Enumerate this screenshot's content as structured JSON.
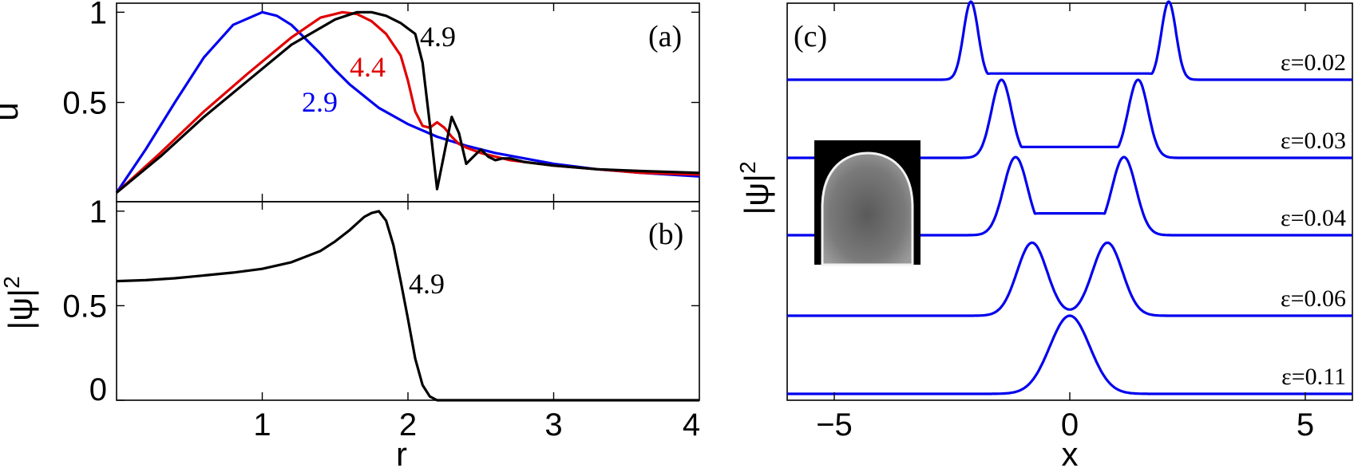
{
  "colors": {
    "blue": "#0000ee",
    "red": "#e00000",
    "black": "#000000"
  },
  "chart_data": [
    {
      "panel": "(a)",
      "type": "line",
      "xlabel": "r",
      "ylabel": "u",
      "xlim": [
        0,
        4
      ],
      "ylim": [
        -0.05,
        1.05
      ],
      "xticks": [],
      "yticks": [
        "0.5",
        "1"
      ],
      "ytick_values": [
        0.5,
        1
      ],
      "series": [
        {
          "name": "2.9",
          "color": "blue",
          "x": [
            0,
            0.2,
            0.4,
            0.6,
            0.8,
            1.0,
            1.1,
            1.2,
            1.3,
            1.4,
            1.5,
            1.6,
            1.8,
            2.0,
            2.2,
            2.4,
            2.6,
            2.8,
            3.0,
            3.3,
            3.6,
            4.0
          ],
          "y": [
            0,
            0.24,
            0.5,
            0.75,
            0.93,
            1.0,
            0.98,
            0.93,
            0.85,
            0.77,
            0.68,
            0.6,
            0.47,
            0.38,
            0.31,
            0.26,
            0.22,
            0.19,
            0.16,
            0.13,
            0.11,
            0.09
          ]
        },
        {
          "name": "4.4",
          "color": "red",
          "x": [
            0,
            0.3,
            0.6,
            0.9,
            1.2,
            1.4,
            1.55,
            1.65,
            1.75,
            1.85,
            1.95,
            2.0,
            2.05,
            2.1,
            2.15,
            2.2,
            2.25,
            2.3,
            2.35,
            2.4,
            2.5,
            2.6,
            2.7,
            2.8,
            3.0,
            3.3,
            3.6,
            4.0
          ],
          "y": [
            0,
            0.22,
            0.45,
            0.66,
            0.86,
            0.97,
            1.0,
            0.99,
            0.95,
            0.88,
            0.76,
            0.62,
            0.45,
            0.37,
            0.36,
            0.39,
            0.36,
            0.31,
            0.27,
            0.25,
            0.22,
            0.2,
            0.18,
            0.17,
            0.15,
            0.13,
            0.11,
            0.1
          ]
        },
        {
          "name": "4.9",
          "color": "black",
          "x": [
            0,
            0.3,
            0.6,
            0.9,
            1.2,
            1.5,
            1.65,
            1.75,
            1.85,
            1.95,
            2.05,
            2.1,
            2.15,
            2.2,
            2.25,
            2.3,
            2.35,
            2.4,
            2.45,
            2.5,
            2.55,
            2.6,
            2.65,
            2.7,
            2.8,
            3.0,
            3.3,
            3.6,
            4.0
          ],
          "y": [
            0,
            0.2,
            0.42,
            0.62,
            0.82,
            0.96,
            1.0,
            1.0,
            0.98,
            0.94,
            0.88,
            0.72,
            0.38,
            0.02,
            0.22,
            0.42,
            0.33,
            0.16,
            0.2,
            0.24,
            0.2,
            0.18,
            0.19,
            0.19,
            0.17,
            0.15,
            0.13,
            0.12,
            0.11
          ]
        }
      ],
      "annotations": [
        {
          "text": "2.9",
          "color": "blue"
        },
        {
          "text": "4.4",
          "color": "red"
        },
        {
          "text": "4.9",
          "color": "black"
        }
      ]
    },
    {
      "panel": "(b)",
      "type": "line",
      "xlabel": "r",
      "ylabel": "|ψ|²",
      "xlim": [
        0,
        4
      ],
      "ylim": [
        0,
        1.05
      ],
      "xticks": [
        "1",
        "2",
        "3",
        "4"
      ],
      "xtick_values": [
        1,
        2,
        3,
        4
      ],
      "yticks": [
        "0",
        "0.5",
        "1"
      ],
      "ytick_values": [
        0,
        0.5,
        1
      ],
      "series": [
        {
          "name": "4.9",
          "color": "black",
          "x": [
            0,
            0.2,
            0.4,
            0.6,
            0.8,
            1.0,
            1.2,
            1.4,
            1.5,
            1.6,
            1.7,
            1.75,
            1.8,
            1.85,
            1.9,
            1.95,
            2.0,
            2.05,
            2.1,
            2.15,
            2.2,
            2.3,
            2.5,
            3.0,
            3.5,
            4.0
          ],
          "y": [
            0.63,
            0.635,
            0.645,
            0.66,
            0.675,
            0.695,
            0.73,
            0.79,
            0.84,
            0.9,
            0.97,
            0.99,
            1.0,
            0.95,
            0.82,
            0.63,
            0.43,
            0.22,
            0.08,
            0.02,
            0.0,
            0.0,
            0.0,
            0.0,
            0.0,
            0.0
          ]
        }
      ],
      "annotations": [
        {
          "text": "4.9",
          "color": "black"
        }
      ]
    },
    {
      "panel": "(c)",
      "type": "line",
      "xlabel": "x",
      "ylabel": "|ψ|²",
      "xlim": [
        -6,
        6
      ],
      "xticks": [
        "−5",
        "0",
        "5"
      ],
      "xtick_values": [
        -5,
        0,
        5
      ],
      "series": [
        {
          "name": "ε=0.02",
          "color": "blue",
          "peaks": [
            -2.1,
            2.1
          ],
          "width": 0.22,
          "floor": 0.08,
          "floor_half_width": 2.1,
          "amp": 1.0
        },
        {
          "name": "ε=0.03",
          "color": "blue",
          "peaks": [
            -1.45,
            1.45
          ],
          "width": 0.3,
          "floor": 0.14,
          "floor_half_width": 1.45,
          "amp": 1.0
        },
        {
          "name": "ε=0.04",
          "color": "blue",
          "peaks": [
            -1.15,
            1.15
          ],
          "width": 0.36,
          "floor": 0.28,
          "floor_half_width": 1.15,
          "amp": 1.0
        },
        {
          "name": "ε=0.06",
          "color": "blue",
          "peaks": [
            -0.8,
            0.8
          ],
          "width": 0.45,
          "floor": 0.0,
          "floor_half_width": 0.0,
          "amp": 1.0
        },
        {
          "name": "ε=0.11",
          "color": "blue",
          "peaks": [
            0.0
          ],
          "width": 0.6,
          "floor": 0.0,
          "floor_half_width": 0.0,
          "amp": 1.0
        }
      ]
    }
  ],
  "panel_labels": {
    "a": "(a)",
    "b": "(b)",
    "c": "(c)"
  },
  "axis_labels": {
    "a_y": "u",
    "b_y": "|ψ|",
    "b_y_sup": "2",
    "b_x": "r",
    "c_y": "|ψ|",
    "c_y_sup": "2",
    "c_x": "x"
  }
}
